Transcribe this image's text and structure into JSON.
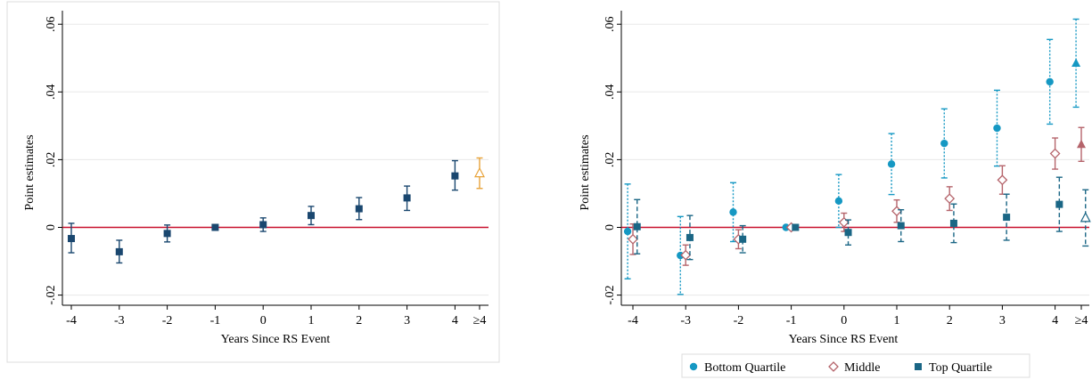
{
  "chart_data": [
    {
      "type": "scatter",
      "variant": "coefficient plot with 95% confidence intervals",
      "xlabel": "Years Since RS Event",
      "ylabel": "Point estimates",
      "categories": [
        "-4",
        "-3",
        "-2",
        "-1",
        "0",
        "1",
        "2",
        "3",
        "4",
        "≥4"
      ],
      "yticks": [
        "-.02",
        "0",
        ".02",
        ".04",
        ".06"
      ],
      "ytick_values": [
        -0.02,
        0,
        0.02,
        0.04,
        0.06
      ],
      "ylim": [
        -0.023,
        0.064
      ],
      "zero_line": true,
      "grid": "horizontal",
      "legend": "none",
      "series": [
        {
          "color": "#1a476f",
          "marker": "square",
          "points": [
            {
              "x": "-4",
              "y": -0.0033,
              "lo": -0.0075,
              "hi": 0.0012
            },
            {
              "x": "-3",
              "y": -0.0072,
              "lo": -0.0105,
              "hi": -0.0038
            },
            {
              "x": "-2",
              "y": -0.0018,
              "lo": -0.0043,
              "hi": 0.0007
            },
            {
              "x": "-1",
              "y": 0.0,
              "lo": 0.0,
              "hi": 0.0
            },
            {
              "x": "0",
              "y": 0.0008,
              "lo": -0.0012,
              "hi": 0.0028
            },
            {
              "x": "1",
              "y": 0.0035,
              "lo": 0.0008,
              "hi": 0.0062
            },
            {
              "x": "2",
              "y": 0.0055,
              "lo": 0.0023,
              "hi": 0.0088
            },
            {
              "x": "3",
              "y": 0.0087,
              "lo": 0.005,
              "hi": 0.0122
            },
            {
              "x": "4",
              "y": 0.0152,
              "lo": 0.011,
              "hi": 0.0197
            }
          ]
        },
        {
          "color": "#e8a33a",
          "marker": "triangle-hollow",
          "points": [
            {
              "x": "≥4",
              "y": 0.016,
              "lo": 0.0115,
              "hi": 0.0205
            }
          ]
        }
      ]
    },
    {
      "type": "scatter",
      "variant": "coefficient plot with 95% confidence intervals",
      "xlabel": "Years Since RS Event",
      "ylabel": "Point estimates",
      "categories": [
        "-4",
        "-3",
        "-2",
        "-1",
        "0",
        "1",
        "2",
        "3",
        "4",
        "≥4"
      ],
      "yticks": [
        "-.02",
        "0",
        ".02",
        ".04",
        ".06"
      ],
      "ytick_values": [
        -0.02,
        0,
        0.02,
        0.04,
        0.06
      ],
      "ylim": [
        -0.023,
        0.064
      ],
      "zero_line": true,
      "grid": "horizontal",
      "legend": "bottom",
      "series": [
        {
          "name": "Bottom Quartile",
          "color": "#1598c3",
          "marker": "circle",
          "ci_style": "dotted",
          "offset": -0.1,
          "points": [
            {
              "x": "-4",
              "y": -0.0012,
              "lo": -0.0152,
              "hi": 0.0128
            },
            {
              "x": "-3",
              "y": -0.0083,
              "lo": -0.0198,
              "hi": 0.0032
            },
            {
              "x": "-2",
              "y": 0.0045,
              "lo": -0.0042,
              "hi": 0.0132
            },
            {
              "x": "-1",
              "y": 0.0,
              "lo": 0.0,
              "hi": 0.0
            },
            {
              "x": "0",
              "y": 0.0078,
              "lo": 0.0,
              "hi": 0.0156
            },
            {
              "x": "1",
              "y": 0.0187,
              "lo": 0.0097,
              "hi": 0.0277
            },
            {
              "x": "2",
              "y": 0.0248,
              "lo": 0.0146,
              "hi": 0.035
            },
            {
              "x": "3",
              "y": 0.0293,
              "lo": 0.0181,
              "hi": 0.0405
            },
            {
              "x": "4",
              "y": 0.043,
              "lo": 0.0305,
              "hi": 0.0555
            },
            {
              "x": "≥4",
              "y": 0.0485,
              "lo": 0.0355,
              "hi": 0.0615,
              "marker": "triangle"
            }
          ]
        },
        {
          "name": "Middle",
          "color": "#b5646b",
          "marker": "diamond-hollow",
          "ci_style": "solid",
          "offset": 0.0,
          "points": [
            {
              "x": "-4",
              "y": -0.0035,
              "lo": -0.008,
              "hi": 0.001
            },
            {
              "x": "-3",
              "y": -0.0082,
              "lo": -0.0112,
              "hi": -0.0052
            },
            {
              "x": "-2",
              "y": -0.0035,
              "lo": -0.0063,
              "hi": -0.0007
            },
            {
              "x": "-1",
              "y": 0.0,
              "lo": 0.0,
              "hi": 0.0
            },
            {
              "x": "0",
              "y": 0.0015,
              "lo": -0.0012,
              "hi": 0.0042
            },
            {
              "x": "1",
              "y": 0.0048,
              "lo": 0.0015,
              "hi": 0.0081
            },
            {
              "x": "2",
              "y": 0.0085,
              "lo": 0.005,
              "hi": 0.012
            },
            {
              "x": "3",
              "y": 0.014,
              "lo": 0.0098,
              "hi": 0.0182
            },
            {
              "x": "4",
              "y": 0.0218,
              "lo": 0.0172,
              "hi": 0.0264
            },
            {
              "x": "≥4",
              "y": 0.0245,
              "lo": 0.0195,
              "hi": 0.0295,
              "marker": "triangle"
            }
          ]
        },
        {
          "name": "Top Quartile",
          "color": "#1a6685",
          "marker": "square",
          "ci_style": "dashed",
          "offset": 0.08,
          "points": [
            {
              "x": "-4",
              "y": 0.0002,
              "lo": -0.0078,
              "hi": 0.0082
            },
            {
              "x": "-3",
              "y": -0.003,
              "lo": -0.0095,
              "hi": 0.0035
            },
            {
              "x": "-2",
              "y": -0.0035,
              "lo": -0.0075,
              "hi": 0.0005
            },
            {
              "x": "-1",
              "y": 0.0,
              "lo": 0.0,
              "hi": 0.0
            },
            {
              "x": "0",
              "y": -0.0015,
              "lo": -0.0052,
              "hi": 0.0022
            },
            {
              "x": "1",
              "y": 0.0005,
              "lo": -0.0042,
              "hi": 0.0052
            },
            {
              "x": "2",
              "y": 0.0012,
              "lo": -0.0045,
              "hi": 0.0069
            },
            {
              "x": "3",
              "y": 0.003,
              "lo": -0.0038,
              "hi": 0.0098
            },
            {
              "x": "4",
              "y": 0.0068,
              "lo": -0.0012,
              "hi": 0.0148
            },
            {
              "x": "≥4",
              "y": 0.0028,
              "lo": -0.0055,
              "hi": 0.0111,
              "marker": "triangle-hollow"
            }
          ]
        }
      ]
    }
  ],
  "colors": {
    "zero_line": "#c8102e",
    "grid": "#e8e8e8",
    "frame": "#dcdcdc"
  }
}
